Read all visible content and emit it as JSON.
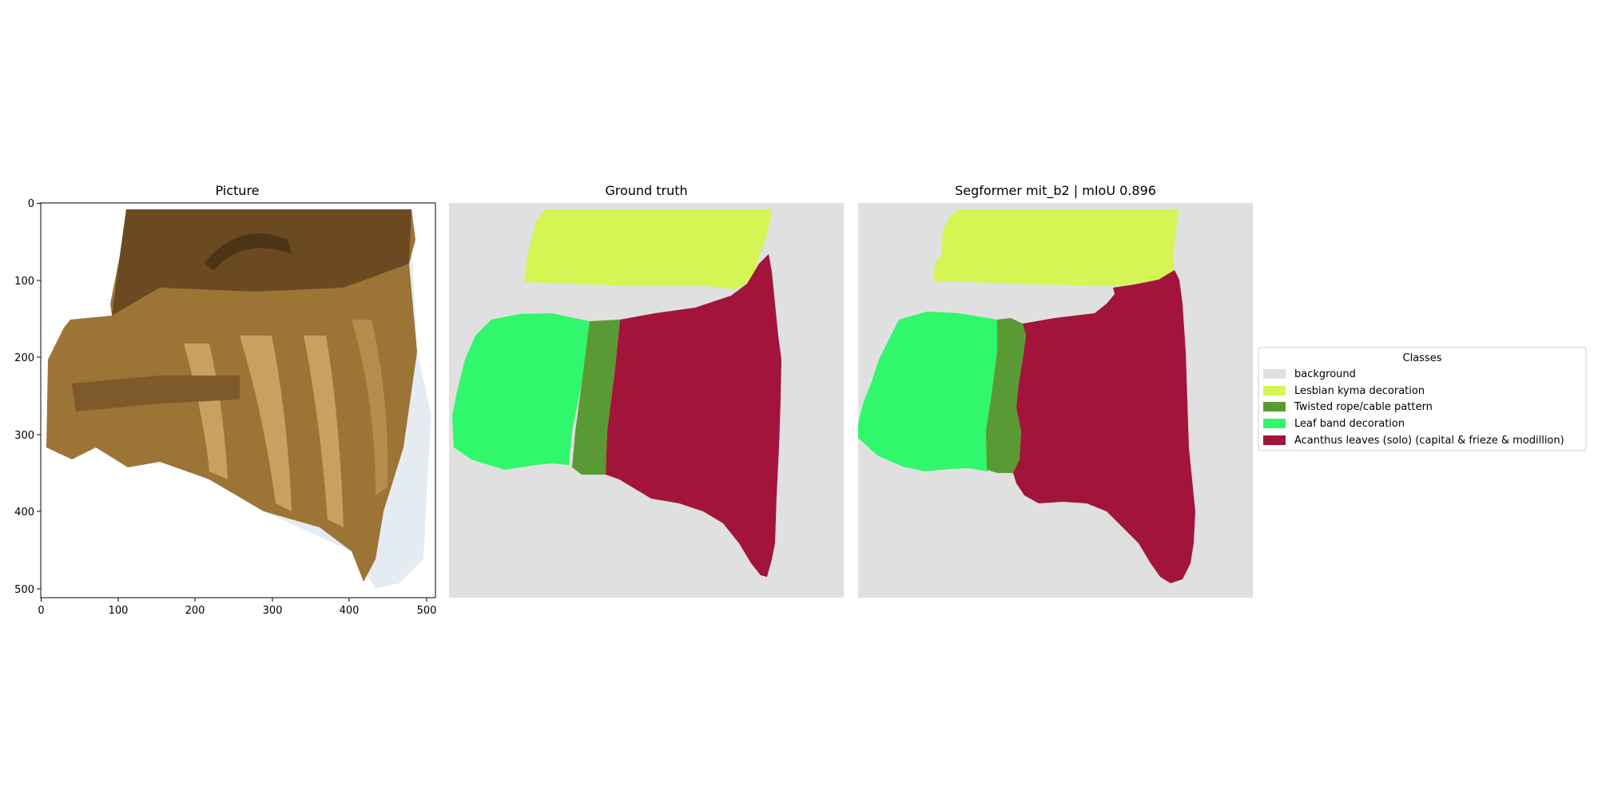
{
  "panels": {
    "picture": {
      "title": "Picture",
      "x_ticks": [
        "0",
        "100",
        "200",
        "300",
        "400",
        "500"
      ],
      "y_ticks": [
        "0",
        "100",
        "200",
        "300",
        "400",
        "500"
      ]
    },
    "ground_truth": {
      "title": "Ground truth"
    },
    "prediction": {
      "title": "Segformer mit_b2 | mIoU 0.896"
    }
  },
  "legend": {
    "title": "Classes",
    "items": [
      {
        "label": "background",
        "color": "#e0e0e0"
      },
      {
        "label": "Lesbian kyma decoration",
        "color": "#d4f553"
      },
      {
        "label": "Twisted rope/cable pattern",
        "color": "#5a9a34"
      },
      {
        "label": "Leaf band decoration",
        "color": "#30f76b"
      },
      {
        "label": "Acanthus leaves (solo) (capital & frieze & modillion)",
        "color": "#a3143b"
      }
    ]
  },
  "colors": {
    "stone_dark": "#6b4a22",
    "stone_mid": "#9c7436",
    "stone_light": "#c8a160",
    "marble_white": "#e4ecf2"
  }
}
